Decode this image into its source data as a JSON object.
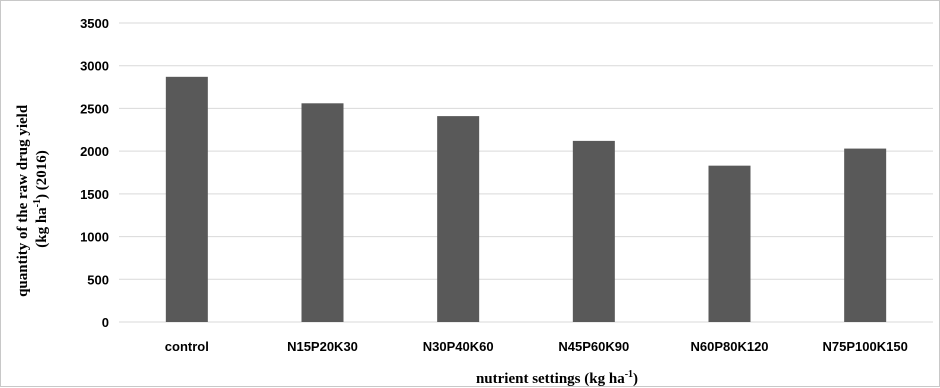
{
  "chart_data": {
    "type": "bar",
    "categories": [
      "control",
      "N15P20K30",
      "N30P40K60",
      "N45P60K90",
      "N60P80K120",
      "N75P100K150"
    ],
    "values": [
      2870,
      2560,
      2410,
      2120,
      1830,
      2030
    ],
    "ylim": [
      0,
      3500
    ],
    "yticks": [
      0,
      500,
      1000,
      1500,
      2000,
      2500,
      3000,
      3500
    ],
    "grid": true,
    "legend": "none",
    "bar_color": "#595959",
    "grid_color": "#d9d9d9",
    "xlabel": {
      "main": "nutrient settings (kg ha",
      "sup": "-1",
      "end": ")"
    },
    "ylabel": {
      "line1": "quantity of the raw drug yield",
      "line2_main": "(kg ha",
      "line2_sup": "-1",
      "line2_end": ") (2016)"
    }
  }
}
